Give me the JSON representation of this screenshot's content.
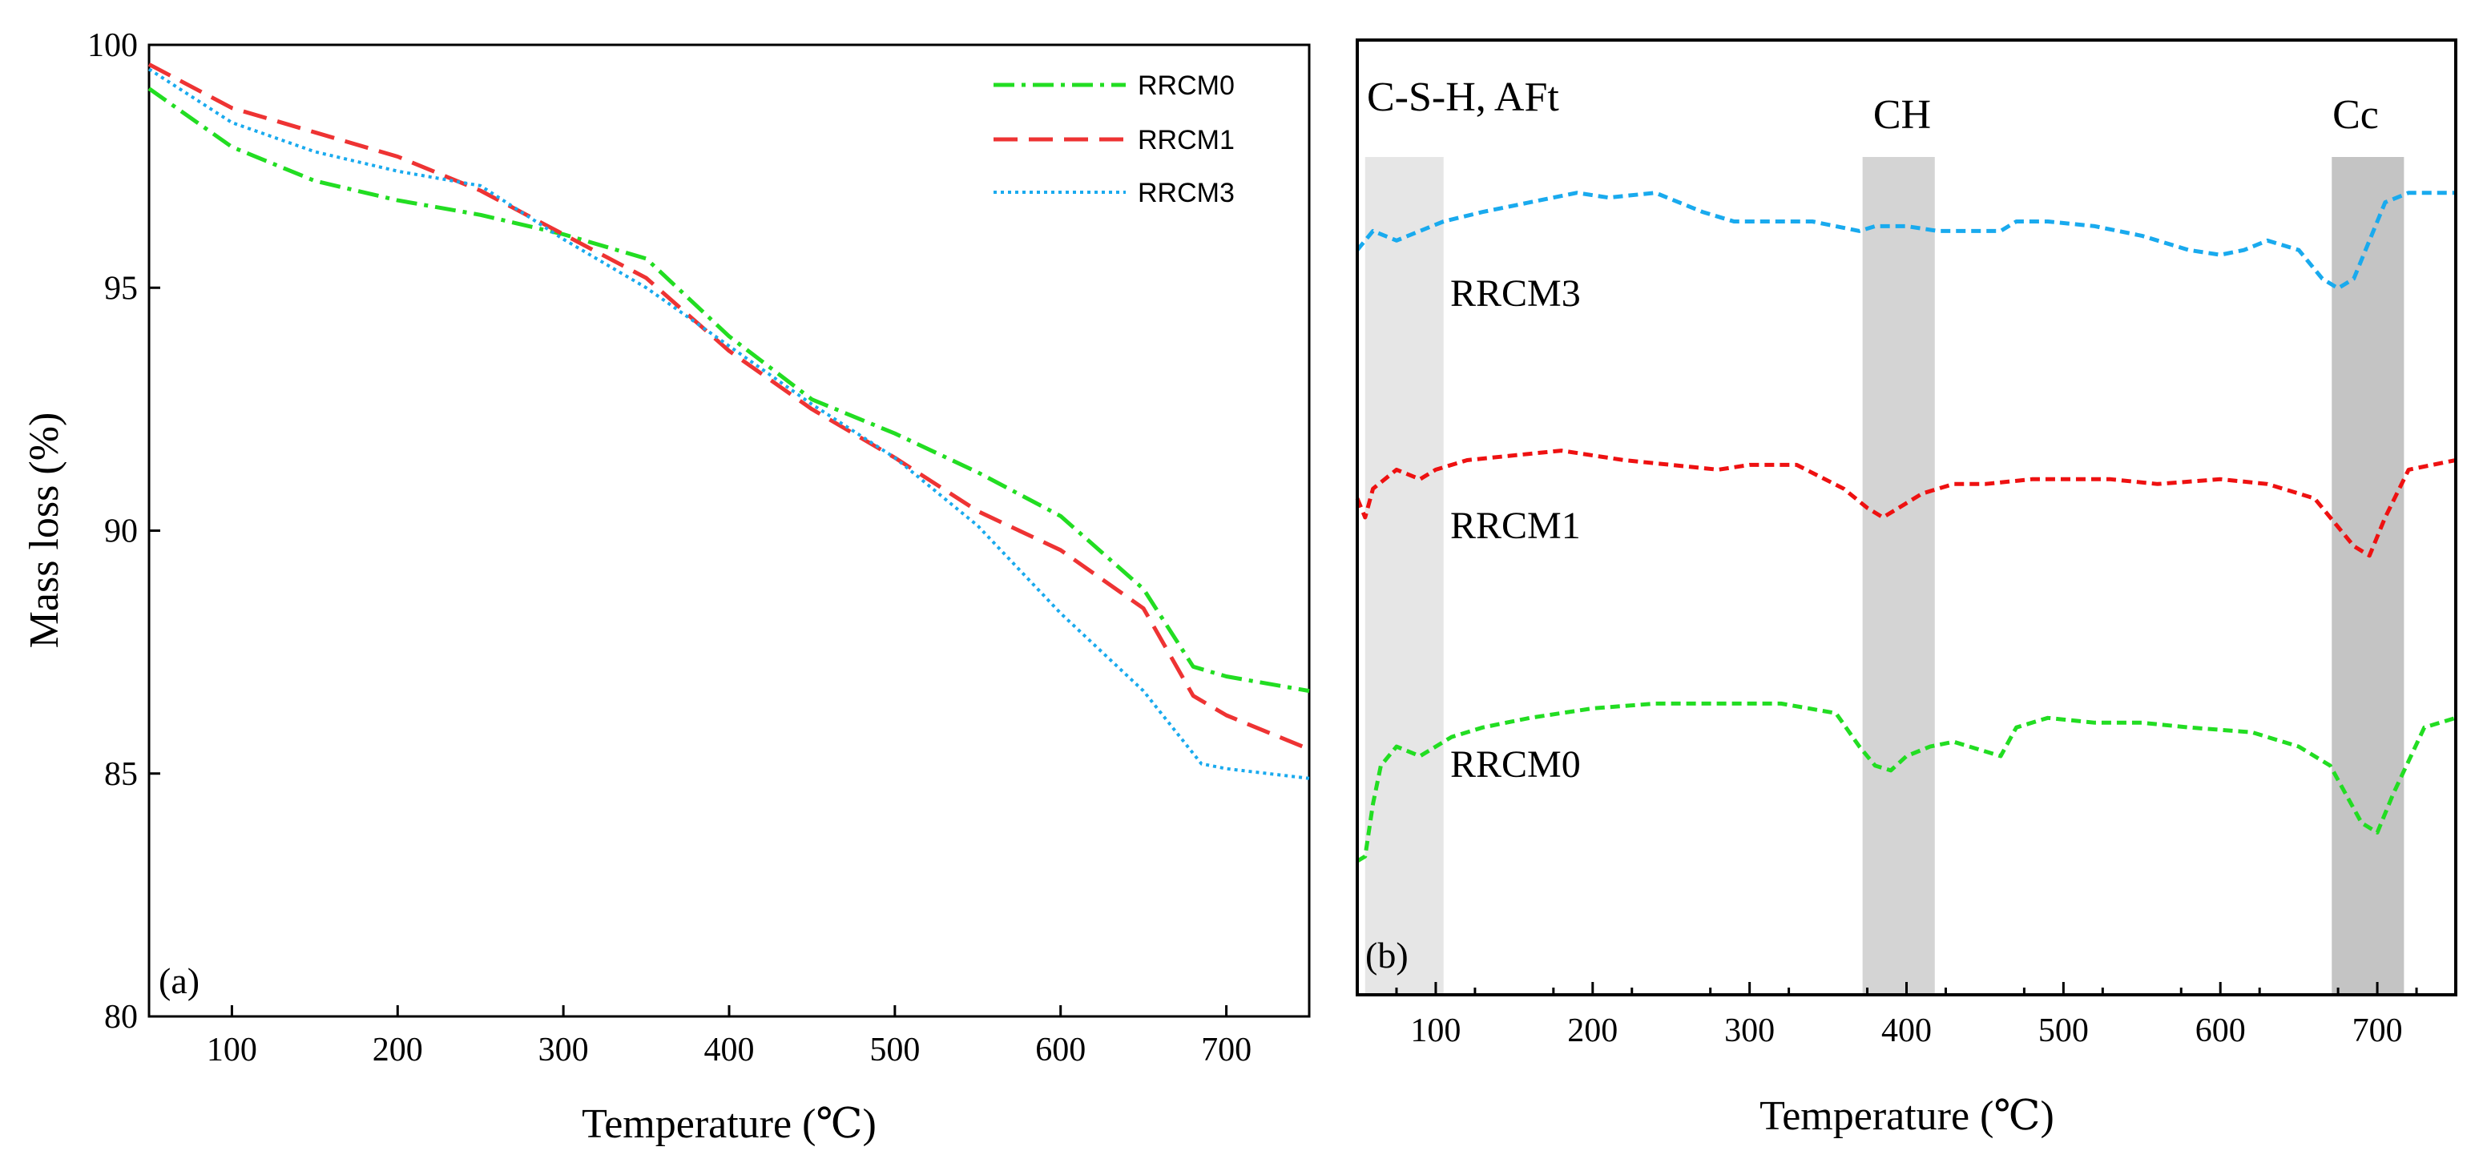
{
  "chart_data": [
    {
      "panel": "(a)",
      "type": "line",
      "title": "",
      "xlabel": "Temperature (℃)",
      "ylabel": "Mass loss (%)",
      "xlim": [
        50,
        750
      ],
      "ylim": [
        80,
        100
      ],
      "xticks": [
        100,
        200,
        300,
        400,
        500,
        600,
        700
      ],
      "yticks": [
        80,
        85,
        90,
        95,
        100
      ],
      "legend_position": "top-right",
      "series": [
        {
          "name": "RRCM0",
          "color": "#22dd22",
          "dash": "dash-dot",
          "x": [
            50,
            100,
            150,
            200,
            250,
            300,
            350,
            400,
            450,
            500,
            550,
            600,
            650,
            680,
            700,
            750
          ],
          "y": [
            99.1,
            97.9,
            97.2,
            96.8,
            96.5,
            96.1,
            95.6,
            94.0,
            92.7,
            92.0,
            91.2,
            90.3,
            88.8,
            87.2,
            87.0,
            86.7
          ]
        },
        {
          "name": "RRCM1",
          "color": "#ee3333",
          "dash": "dashed",
          "x": [
            50,
            100,
            150,
            200,
            250,
            300,
            350,
            400,
            450,
            500,
            550,
            600,
            650,
            680,
            700,
            750
          ],
          "y": [
            99.6,
            98.7,
            98.2,
            97.7,
            97.0,
            96.1,
            95.2,
            93.7,
            92.5,
            91.5,
            90.4,
            89.6,
            88.4,
            86.6,
            86.2,
            85.5
          ]
        },
        {
          "name": "RRCM3",
          "color": "#19aaee",
          "dash": "dotted",
          "x": [
            50,
            100,
            150,
            200,
            250,
            300,
            350,
            400,
            450,
            500,
            550,
            600,
            650,
            685,
            700,
            750
          ],
          "y": [
            99.5,
            98.4,
            97.8,
            97.4,
            97.1,
            96.0,
            95.0,
            93.8,
            92.6,
            91.5,
            90.1,
            88.3,
            86.7,
            85.2,
            85.1,
            84.9
          ]
        }
      ]
    },
    {
      "panel": "(b)",
      "type": "line",
      "title": "",
      "xlabel": "Temperature (℃)",
      "ylabel": "",
      "xlim": [
        50,
        750
      ],
      "xticks": [
        100,
        200,
        300,
        400,
        500,
        600,
        700
      ],
      "y_units": "relative (offset DTG curves, no y-axis)",
      "ylim": [
        0,
        100
      ],
      "shaded_regions": [
        {
          "label": "C-S-H, AFt",
          "x_range": [
            55,
            105
          ],
          "shade": "#e6e6e6"
        },
        {
          "label": "CH",
          "x_range": [
            372,
            418
          ],
          "shade": "#d4d4d4"
        },
        {
          "label": "Cc",
          "x_range": [
            671,
            717
          ],
          "shade": "#c4c4c4"
        }
      ],
      "series": [
        {
          "name": "RRCM3",
          "color": "#19aaee",
          "dash": "dashed",
          "x": [
            50,
            60,
            75,
            90,
            105,
            130,
            160,
            190,
            210,
            240,
            270,
            290,
            310,
            340,
            370,
            380,
            400,
            420,
            440,
            460,
            470,
            490,
            520,
            550,
            580,
            600,
            615,
            630,
            650,
            665,
            675,
            685,
            695,
            705,
            720,
            735,
            750
          ],
          "y": [
            78,
            80,
            79,
            80,
            81,
            82,
            83,
            84,
            83.5,
            84,
            82,
            81,
            81,
            81,
            80,
            80.5,
            80.5,
            80,
            80,
            80,
            81,
            81,
            80.5,
            79.5,
            78,
            77.5,
            78,
            79,
            78,
            75,
            74,
            75,
            79,
            83,
            84,
            84,
            84
          ]
        },
        {
          "name": "RRCM1",
          "color": "#ee1111",
          "dash": "dashed",
          "x": [
            50,
            55,
            60,
            75,
            90,
            100,
            120,
            150,
            180,
            220,
            250,
            280,
            300,
            330,
            360,
            375,
            385,
            395,
            410,
            430,
            450,
            480,
            500,
            530,
            560,
            600,
            630,
            660,
            675,
            685,
            695,
            705,
            720,
            750
          ],
          "y": [
            52,
            50,
            53,
            55,
            54,
            55,
            56,
            56.5,
            57,
            56,
            55.5,
            55,
            55.5,
            55.5,
            53,
            51,
            50,
            51,
            52.5,
            53.5,
            53.5,
            54,
            54,
            54,
            53.5,
            54,
            53.5,
            52,
            49,
            47,
            46,
            50,
            55,
            56
          ]
        },
        {
          "name": "RRCM0",
          "color": "#22dd22",
          "dash": "dashed",
          "x": [
            50,
            55,
            60,
            65,
            75,
            90,
            100,
            110,
            130,
            160,
            200,
            240,
            280,
            320,
            355,
            370,
            380,
            390,
            400,
            415,
            430,
            450,
            460,
            470,
            490,
            520,
            550,
            580,
            620,
            650,
            670,
            680,
            690,
            700,
            710,
            730,
            750
          ],
          "y": [
            14,
            14.5,
            20,
            24,
            26,
            25,
            26,
            27,
            28,
            29,
            30,
            30.5,
            30.5,
            30.5,
            29.5,
            26,
            24,
            23.5,
            25,
            26,
            26.5,
            25.5,
            25,
            28,
            29,
            28.5,
            28.5,
            28,
            27.5,
            26,
            24,
            21,
            18,
            17,
            21,
            28,
            29
          ]
        }
      ],
      "curve_labels": [
        {
          "text": "RRCM3",
          "at_x": 150
        },
        {
          "text": "RRCM1",
          "at_x": 150
        },
        {
          "text": "RRCM0",
          "at_x": 150
        }
      ]
    }
  ]
}
